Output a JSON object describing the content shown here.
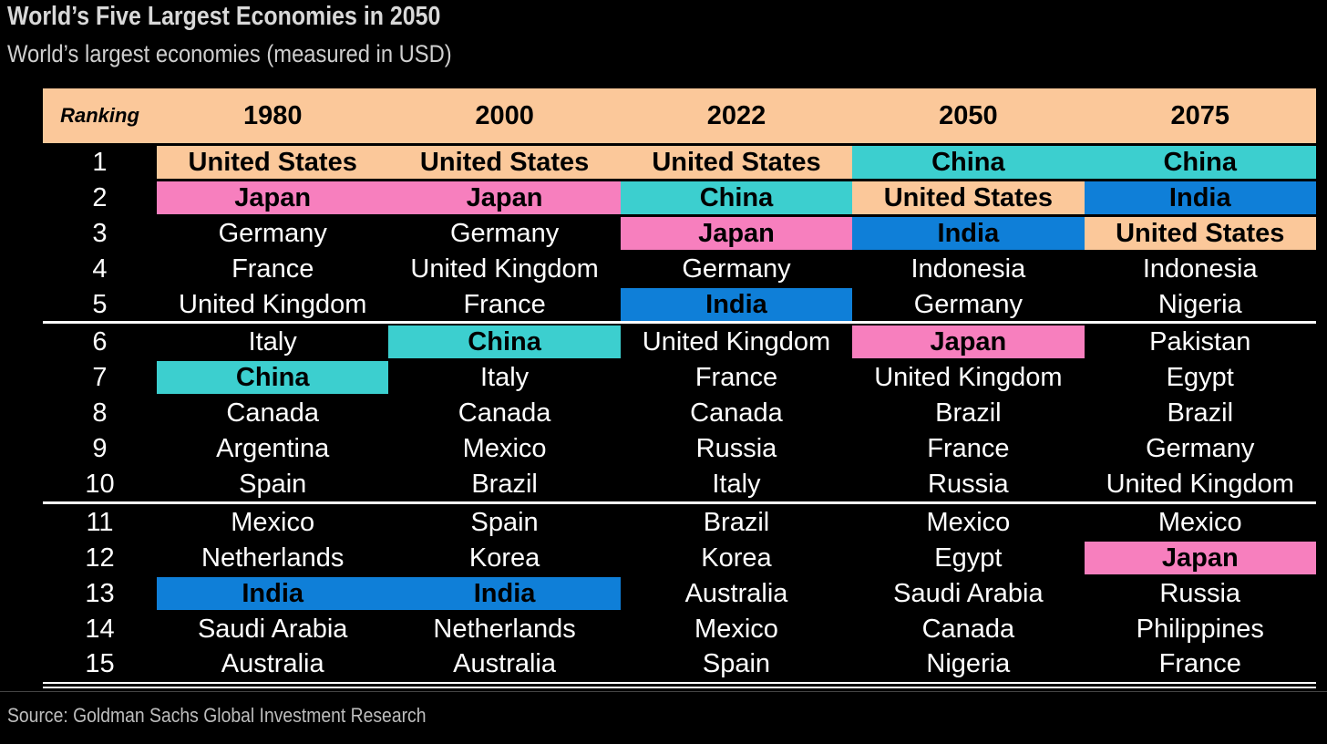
{
  "title": "World’s Five Largest Economies in 2050",
  "subtitle": "World’s largest economies (measured in USD)",
  "source": "Source: Goldman Sachs Global Investment Research",
  "colors": {
    "header": "#fbc89a",
    "United States": "#fbc89a",
    "Japan": "#f77fbe",
    "China": "#3ccfcf",
    "India": "#0f7fd8"
  },
  "chart_data": {
    "type": "table",
    "columns": [
      "Ranking",
      "1980",
      "2000",
      "2022",
      "2050",
      "2075"
    ],
    "rows": [
      [
        "1",
        "United States",
        "United States",
        "United States",
        "China",
        "China"
      ],
      [
        "2",
        "Japan",
        "Japan",
        "China",
        "United States",
        "India"
      ],
      [
        "3",
        "Germany",
        "Germany",
        "Japan",
        "India",
        "United States"
      ],
      [
        "4",
        "France",
        "United Kingdom",
        "Germany",
        "Indonesia",
        "Indonesia"
      ],
      [
        "5",
        "United Kingdom",
        "France",
        "India",
        "Germany",
        "Nigeria"
      ],
      [
        "6",
        "Italy",
        "China",
        "United Kingdom",
        "Japan",
        "Pakistan"
      ],
      [
        "7",
        "China",
        "Italy",
        "France",
        "United Kingdom",
        "Egypt"
      ],
      [
        "8",
        "Canada",
        "Canada",
        "Canada",
        "Brazil",
        "Brazil"
      ],
      [
        "9",
        "Argentina",
        "Mexico",
        "Russia",
        "France",
        "Germany"
      ],
      [
        "10",
        "Spain",
        "Brazil",
        "Italy",
        "Russia",
        "United Kingdom"
      ],
      [
        "11",
        "Mexico",
        "Spain",
        "Brazil",
        "Mexico",
        "Mexico"
      ],
      [
        "12",
        "Netherlands",
        "Korea",
        "Korea",
        "Egypt",
        "Japan"
      ],
      [
        "13",
        "India",
        "India",
        "Australia",
        "Saudi Arabia",
        "Russia"
      ],
      [
        "14",
        "Saudi Arabia",
        "Netherlands",
        "Mexico",
        "Canada",
        "Philippines"
      ],
      [
        "15",
        "Australia",
        "Australia",
        "Spain",
        "Nigeria",
        "France"
      ]
    ],
    "highlighted": [
      "United States",
      "Japan",
      "China",
      "India"
    ],
    "separators_after_rank": [
      5,
      10
    ]
  }
}
